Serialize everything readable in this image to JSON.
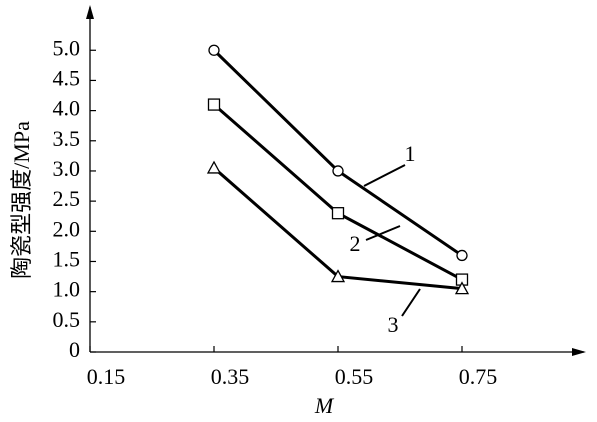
{
  "chart_data": {
    "type": "line",
    "xlabel": "M",
    "ylabel": "陶瓷型强度/MPa",
    "x": [
      0.35,
      0.55,
      0.75
    ],
    "series": [
      {
        "name": "1",
        "marker": "circle",
        "color": "#000000",
        "values": [
          5.0,
          3.0,
          1.6
        ]
      },
      {
        "name": "2",
        "marker": "square",
        "color": "#000000",
        "values": [
          4.1,
          2.3,
          1.2
        ]
      },
      {
        "name": "3",
        "marker": "triangle",
        "color": "#000000",
        "values": [
          3.05,
          1.25,
          1.05
        ]
      }
    ],
    "xlim": [
      0.15,
      0.95
    ],
    "ylim": [
      0,
      5.75
    ],
    "xticks": [
      0.15,
      0.35,
      0.55,
      0.75
    ],
    "yticks": [
      0,
      {
        "value": 0.5,
        "label": "0.5"
      },
      {
        "value": 1,
        "label": "1.0"
      },
      {
        "value": 1.5,
        "label": "1.5"
      },
      {
        "value": 2,
        "label": "2.0"
      },
      {
        "value": 2.5,
        "label": "2.5"
      },
      {
        "value": 3,
        "label": "3.0"
      },
      {
        "value": 3.5,
        "label": "3.5"
      },
      {
        "value": 4,
        "label": "4.0"
      },
      {
        "value": 4.5,
        "label": "4.5"
      },
      {
        "value": 5,
        "label": "5.0"
      }
    ]
  }
}
